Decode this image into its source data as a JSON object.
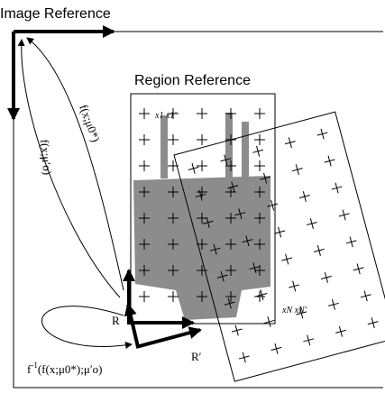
{
  "image_reference": "Image Reference",
  "region_reference": "Region Reference",
  "arrow_labels": [
    "f(x;μ0*)",
    "f(x;μ′o)"
  ],
  "origin_labels": [
    "R",
    "R′"
  ],
  "inverse_label": {
    "f": "f",
    "sup": "-1",
    "rest": "(f(x;μ0*);μ′o)"
  },
  "point_labels": [
    "x1",
    "x1′",
    "xN",
    "xN′"
  ]
}
